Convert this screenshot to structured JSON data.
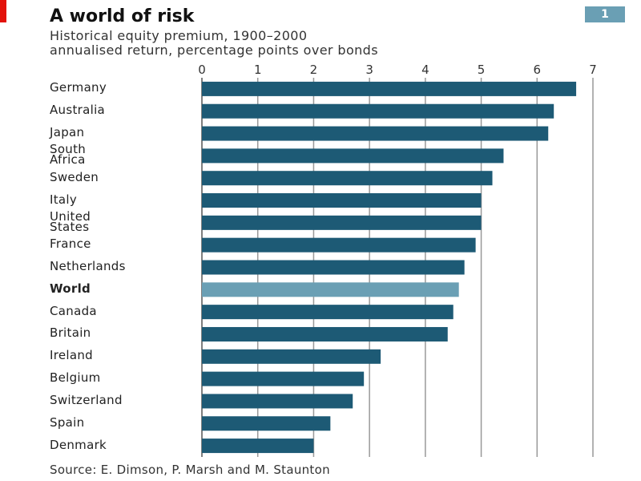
{
  "chart_data": {
    "type": "barh",
    "title": "A world of risk",
    "subtitle": "Historical equity premium, 1900–2000\nannualised return, percentage points over bonds",
    "badge": "1",
    "source": "Source: E. Dimson, P. Marsh and M. Staunton",
    "categories": [
      "Germany",
      "Australia",
      "Japan",
      "South\nAfrica",
      "Sweden",
      "Italy",
      "United\nStates",
      "France",
      "Netherlands",
      "World",
      "Canada",
      "Britain",
      "Ireland",
      "Belgium",
      "Switzerland",
      "Spain",
      "Denmark"
    ],
    "values": [
      6.7,
      6.3,
      6.2,
      5.4,
      5.2,
      5.0,
      5.0,
      4.9,
      4.7,
      4.6,
      4.5,
      4.4,
      3.2,
      2.9,
      2.7,
      2.3,
      2.0
    ],
    "color": "#1d5a75",
    "colors": [
      "#1d5a75",
      "#1d5a75",
      "#1d5a75",
      "#1d5a75",
      "#1d5a75",
      "#1d5a75",
      "#1d5a75",
      "#1d5a75",
      "#1d5a75",
      "#6a9fb4",
      "#1d5a75",
      "#1d5a75",
      "#1d5a75",
      "#1d5a75",
      "#1d5a75",
      "#1d5a75",
      "#1d5a75"
    ],
    "xlim": [
      0,
      7
    ],
    "xticks": [
      0,
      1,
      2,
      3,
      4,
      5,
      6,
      7
    ],
    "grid": true
  }
}
